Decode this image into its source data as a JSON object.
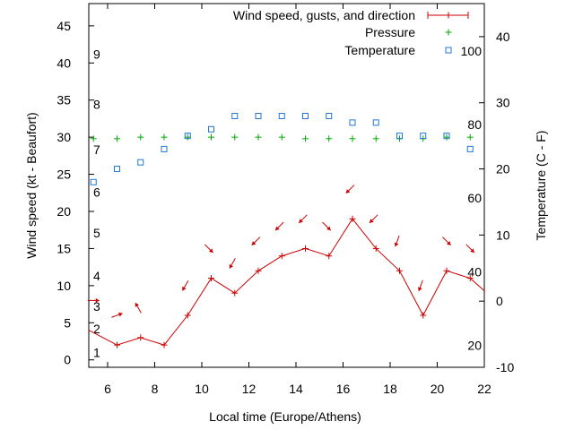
{
  "chart_data": {
    "type": "line",
    "title": "",
    "xlabel": "Local time (Europe/Athens)",
    "ylabel": "Wind speed (kt - Beaufort)",
    "y2label": "Temperature (C - F)",
    "xlim": [
      5.2,
      22
    ],
    "ylim": [
      -1,
      48
    ],
    "y2lim": [
      -10,
      45
    ],
    "grid": false,
    "legend_position": "top-right",
    "x_ticks": [
      6,
      8,
      10,
      12,
      14,
      16,
      18,
      20,
      22
    ],
    "y_ticks": [
      0,
      5,
      10,
      15,
      20,
      25,
      30,
      35,
      40,
      45
    ],
    "y2_ticks": [
      -10,
      0,
      10,
      20,
      30,
      40
    ],
    "beaufort_labels": [
      {
        "label": "1",
        "kt": 1
      },
      {
        "label": "2",
        "kt": 4.2
      },
      {
        "label": "3",
        "kt": 7.2
      },
      {
        "label": "4",
        "kt": 11.3
      },
      {
        "label": "5",
        "kt": 17.1
      },
      {
        "label": "6",
        "kt": 22.6
      },
      {
        "label": "7",
        "kt": 28.3
      },
      {
        "label": "8",
        "kt": 34.4
      },
      {
        "label": "9",
        "kt": 41.2
      }
    ],
    "fahrenheit_labels": [
      {
        "label": "20",
        "celsius": -6.7
      },
      {
        "label": "40",
        "celsius": 4.4
      },
      {
        "label": "60",
        "celsius": 15.6
      },
      {
        "label": "80",
        "celsius": 26.7
      },
      {
        "label": "100",
        "celsius": 37.8
      }
    ],
    "series": [
      {
        "name": "Wind speed, gusts, and direction",
        "color": "#cc0000",
        "style": "line-with-markers",
        "x": [
          5.2,
          6.4,
          7.4,
          8.4,
          9.4,
          10.4,
          11.4,
          12.4,
          13.4,
          14.4,
          15.4,
          16.4,
          17.4,
          18.4,
          19.4,
          20.4,
          21.4,
          22
        ],
        "y": [
          4,
          2,
          3,
          2,
          6,
          11,
          9,
          12,
          14,
          15,
          14,
          19,
          15,
          12,
          6,
          12,
          11,
          9.3
        ]
      },
      {
        "name": "wind-direction-arrows",
        "color": "#cc0000",
        "style": "arrows",
        "x": [
          5.4,
          6.4,
          7.3,
          9.3,
          10.3,
          11.3,
          12.3,
          13.3,
          14.3,
          15.3,
          16.3,
          17.3,
          18.3,
          19.3,
          20.4,
          21.4
        ],
        "y": [
          8,
          6,
          7,
          10,
          15,
          13,
          16,
          18,
          19,
          18,
          23,
          19,
          16,
          10,
          16,
          15
        ],
        "toward_deg": [
          90,
          70,
          330,
          210,
          135,
          210,
          225,
          225,
          225,
          135,
          225,
          225,
          200,
          200,
          135,
          135
        ]
      },
      {
        "name": "Pressure",
        "color": "#00aa00",
        "style": "plus-markers",
        "x": [
          5.4,
          6.4,
          7.4,
          8.4,
          9.4,
          10.4,
          11.4,
          12.4,
          13.4,
          14.4,
          15.4,
          16.4,
          17.4,
          18.4,
          19.4,
          20.4,
          21.4
        ],
        "y": [
          29.8,
          29.8,
          30,
          30,
          30,
          30,
          30,
          30,
          30,
          29.8,
          29.8,
          29.8,
          29.8,
          29.8,
          29.8,
          30,
          30
        ]
      },
      {
        "name": "Temperature",
        "color": "#1f77d4",
        "style": "square-markers",
        "x": [
          5.4,
          6.4,
          7.4,
          8.4,
          9.4,
          10.4,
          11.4,
          12.4,
          13.4,
          14.4,
          15.4,
          16.4,
          17.4,
          18.4,
          19.4,
          20.4,
          21.4
        ],
        "y": [
          18,
          20,
          21,
          23,
          25,
          26,
          28,
          28,
          28,
          28,
          28,
          27,
          27,
          25,
          25,
          25,
          23
        ]
      }
    ]
  }
}
